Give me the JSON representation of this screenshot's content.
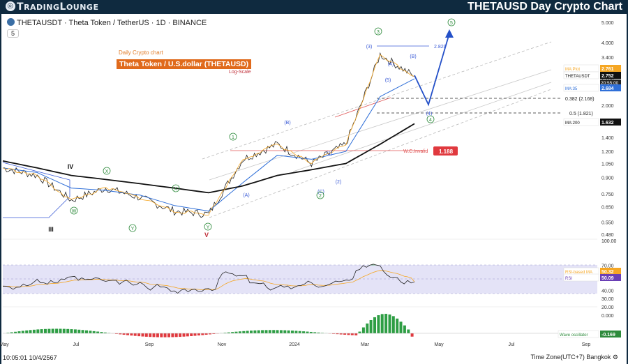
{
  "header": {
    "logo_text_1": "T",
    "logo_text_2": "RADING",
    "logo_text_3": "L",
    "logo_text_4": "OUNGE",
    "title": "THETAUSD Day Crypto Chart"
  },
  "symbol_line": "THETAUSDT · Theta Token / TetherUS · 1D · BINANCE",
  "interval_button": "5",
  "annotations": {
    "daily_label": "Daily Crypto chart",
    "name_box": "Theta Token / U.S.dollar (THETAUSD)",
    "log_scale": "Log-Scale",
    "invalidation_label": "W.C.Invalid",
    "invalidation_value": "1.188",
    "target_label": "2.820",
    "fib_382": "0.382 (2.168)",
    "fib_5": "0.5 (1.821)"
  },
  "wave_labels": {
    "IV": "IV",
    "III": "III",
    "V": "V",
    "W": "W",
    "X": "X",
    "Y": "Y",
    "X2": "X",
    "Y2": "Y",
    "c1": "1",
    "A": "(A)",
    "B": "(B)",
    "C": "(C)",
    "w1": "(1)",
    "w2": "(2)",
    "c2": "2",
    "w3": "(3)",
    "c3": "3",
    "w4": "(4)",
    "c4": "4",
    "w5": "(5)",
    "c5": "5",
    "B2": "(B)",
    "w4b": "(4)"
  },
  "price_axis": {
    "ticks": [
      "5.000",
      "4.000",
      "3.400",
      "2.700",
      "2.000",
      "1.700",
      "1.400",
      "1.200",
      "1.050",
      "0.900",
      "0.750",
      "0.650",
      "0.550",
      "0.480"
    ],
    "badges": [
      {
        "label": "MA:Plot",
        "value": "2.761",
        "color": "#f5a623"
      },
      {
        "label": "THETAUSDT",
        "value": "2.752",
        "color": "#111111",
        "sub": "20:55:00"
      },
      {
        "label": "MA:35",
        "value": "2.684",
        "color": "#2f6fd8"
      },
      {
        "label": "MA:200",
        "value": "1.632",
        "color": "#111111"
      }
    ]
  },
  "rsi_axis": {
    "ticks": [
      "100.00",
      "70.00",
      "60.00",
      "40.00",
      "30.00",
      "20.00"
    ],
    "badges": [
      {
        "label": "RSI-based MA",
        "value": "50.32",
        "color": "#f5a623"
      },
      {
        "label": "RSI",
        "value": "50.09",
        "color": "#6a3fb5"
      }
    ]
  },
  "osc_axis": {
    "ticks": [
      "0.000"
    ],
    "badge": {
      "label": "Wave oscillator",
      "value": "-0.169",
      "color": "#2e8b3c"
    }
  },
  "time_axis": [
    "May",
    "Jul",
    "Sep",
    "Nov",
    "2024",
    "Mar",
    "May",
    "Jul",
    "Sep"
  ],
  "footer": {
    "datetime": "10:05:01 10/4/2567",
    "timezone": "Time Zone(UTC+7) Bangkok"
  },
  "chart_data": {
    "type": "line",
    "title": "Theta Token / U.S.dollar (THETAUSD)",
    "yscale": "log",
    "ylim": [
      0.45,
      5.2
    ],
    "x": [
      "2023-04",
      "2023-05",
      "2023-06",
      "2023-07",
      "2023-08",
      "2023-09",
      "2023-10",
      "2023-11",
      "2023-12",
      "2024-01",
      "2024-02",
      "2024-03",
      "2024-04"
    ],
    "series": [
      {
        "name": "THETAUSDT",
        "values": [
          1.0,
          0.92,
          0.7,
          0.8,
          0.72,
          0.62,
          0.6,
          1.1,
          1.3,
          1.05,
          1.3,
          3.5,
          2.75
        ]
      },
      {
        "name": "MA:35",
        "values": [
          1.0,
          0.95,
          0.8,
          0.78,
          0.74,
          0.66,
          0.62,
          0.85,
          1.15,
          1.1,
          1.2,
          2.2,
          2.68
        ]
      },
      {
        "name": "MA:200",
        "values": [
          1.08,
          1.0,
          0.92,
          0.88,
          0.84,
          0.8,
          0.76,
          0.82,
          0.92,
          0.98,
          1.05,
          1.3,
          1.63
        ]
      }
    ],
    "rsi": {
      "name": "RSI",
      "last": 50.09,
      "ma_last": 50.32
    },
    "oscillator": {
      "name": "Wave oscillator",
      "last": -0.169
    }
  }
}
